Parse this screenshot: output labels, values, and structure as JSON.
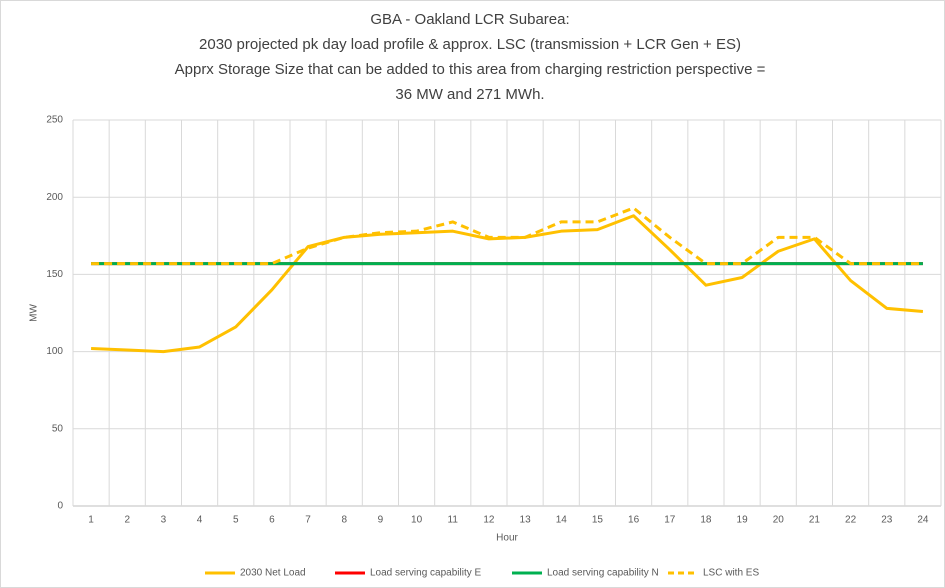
{
  "chart_data": {
    "type": "line",
    "title": [
      "GBA - Oakland LCR Subarea:",
      "2030 projected pk day load profile & approx. LSC (transmission + LCR Gen + ES)",
      "Apprx Storage Size that can be added to this area from charging restriction perspective =",
      "36 MW and 271 MWh."
    ],
    "x_label": "Hour",
    "y_label": "MW",
    "categories": [
      "1",
      "2",
      "3",
      "4",
      "5",
      "6",
      "7",
      "8",
      "9",
      "10",
      "11",
      "12",
      "13",
      "14",
      "15",
      "16",
      "17",
      "18",
      "19",
      "20",
      "21",
      "22",
      "23",
      "24"
    ],
    "series": [
      {
        "name": "2030 Net Load",
        "color": "#ffc000",
        "dash": false,
        "values": [
          102,
          101,
          100,
          103,
          116,
          140,
          168,
          174,
          176,
          177,
          178,
          173,
          174,
          178,
          179,
          188,
          166,
          143,
          148,
          165,
          173,
          146,
          128,
          126
        ]
      },
      {
        "name": "Load serving capability E",
        "color": "#ff0000",
        "dash": false,
        "values": [
          157,
          157,
          157,
          157,
          157,
          157,
          157,
          157,
          157,
          157,
          157,
          157,
          157,
          157,
          157,
          157,
          157,
          157,
          157,
          157,
          157,
          157,
          157,
          157
        ]
      },
      {
        "name": "Load serving capability N",
        "color": "#00b050",
        "dash": false,
        "values": [
          157,
          157,
          157,
          157,
          157,
          157,
          157,
          157,
          157,
          157,
          157,
          157,
          157,
          157,
          157,
          157,
          157,
          157,
          157,
          157,
          157,
          157,
          157,
          157
        ]
      },
      {
        "name": "LSC with ES",
        "color": "#ffc000",
        "dash": true,
        "values": [
          157,
          157,
          157,
          157,
          157,
          157,
          167,
          174,
          177,
          178,
          184,
          174,
          174,
          184,
          184,
          193,
          174,
          157,
          157,
          174,
          174,
          157,
          157,
          157
        ]
      }
    ],
    "ylim": [
      0,
      250
    ],
    "yticks": [
      0,
      50,
      100,
      150,
      200,
      250
    ],
    "grid": true,
    "legend": "bottom"
  }
}
